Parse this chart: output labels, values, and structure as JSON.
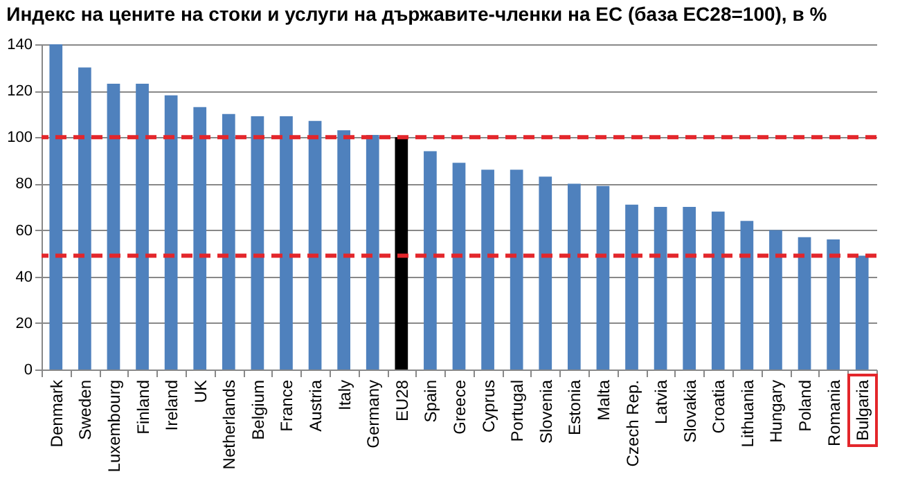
{
  "chart_data": {
    "type": "bar",
    "title": "Индекс на цените на стоки и услуги на държавите-членки на ЕС (база ЕС28=100), в %",
    "categories": [
      "Denmark",
      "Sweden",
      "Luxembourg",
      "Finland",
      "Ireland",
      "UK",
      "Netherlands",
      "Belgium",
      "France",
      "Austria",
      "Italy",
      "Germany",
      "EU28",
      "Spain",
      "Greece",
      "Cyprus",
      "Portugal",
      "Slovenia",
      "Estonia",
      "Malta",
      "Czech Rep.",
      "Latvia",
      "Slovakia",
      "Croatia",
      "Lithuania",
      "Hungary",
      "Poland",
      "Romania",
      "Bulgaria"
    ],
    "values": [
      140,
      130,
      123,
      123,
      118,
      113,
      110,
      109,
      109,
      107,
      103,
      101,
      100,
      94,
      89,
      86,
      86,
      83,
      80,
      79,
      71,
      70,
      70,
      68,
      64,
      60,
      57,
      56,
      49
    ],
    "colors": [
      "#4f81bd",
      "#4f81bd",
      "#4f81bd",
      "#4f81bd",
      "#4f81bd",
      "#4f81bd",
      "#4f81bd",
      "#4f81bd",
      "#4f81bd",
      "#4f81bd",
      "#4f81bd",
      "#4f81bd",
      "#000000",
      "#4f81bd",
      "#4f81bd",
      "#4f81bd",
      "#4f81bd",
      "#4f81bd",
      "#4f81bd",
      "#4f81bd",
      "#4f81bd",
      "#4f81bd",
      "#4f81bd",
      "#4f81bd",
      "#4f81bd",
      "#4f81bd",
      "#4f81bd",
      "#4f81bd",
      "#4f81bd"
    ],
    "ylim": [
      0,
      140
    ],
    "yticks": [
      0,
      20,
      40,
      60,
      80,
      100,
      120,
      140
    ],
    "grid": "y",
    "legend": false,
    "ref_lines": [
      {
        "axis": "y",
        "value": 100,
        "color": "#e3262b",
        "line_style": "dashed"
      },
      {
        "axis": "y",
        "value": 49,
        "color": "#e3262b",
        "line_style": "dashed"
      }
    ]
  }
}
